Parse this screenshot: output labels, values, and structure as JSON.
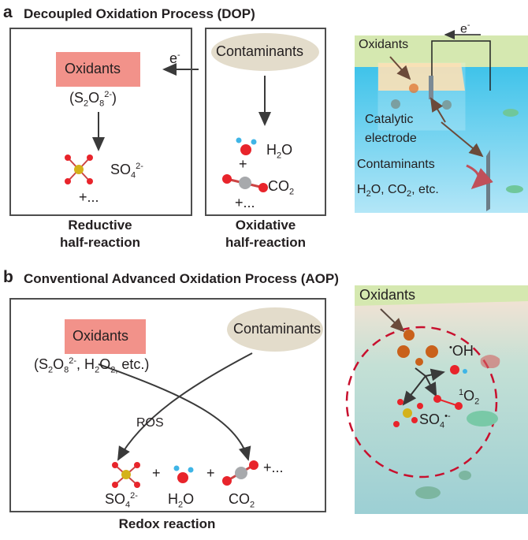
{
  "panel_a": {
    "letter": "a",
    "title": "Decoupled Oxidation Process (DOP)",
    "oxidants": "Oxidants",
    "oxidant_formula": {
      "pre": "(S",
      "s1": "2",
      "mid": "O",
      "s2": "8",
      "sup": "2-",
      "post": ")"
    },
    "sulfate": {
      "base": "SO",
      "sub": "4",
      "sup": "2-"
    },
    "plus_more_left": "+...",
    "reductive_label": [
      "Reductive",
      "half-reaction"
    ],
    "electron": {
      "base": "e",
      "sup": "-"
    },
    "contaminants": "Contaminants",
    "water": {
      "base1": "H",
      "sub": "2",
      "base2": "O"
    },
    "plus": "+",
    "co2": {
      "base": "CO",
      "sub": "2"
    },
    "plus_more_right": "+...",
    "oxidative_label": [
      "Oxidative",
      "half-reaction"
    ],
    "illustration": {
      "oxidants": "Oxidants",
      "electron": {
        "base": "e",
        "sup": "-"
      },
      "catalytic": "Catalytic",
      "electrode": "electrode",
      "contaminants": "Contaminants",
      "products": {
        "a": "H",
        "s1": "2",
        "b": "O, CO",
        "s2": "2",
        "c": ", etc."
      }
    }
  },
  "panel_b": {
    "letter": "b",
    "title": "Conventional Advanced Oxidation Process (AOP)",
    "oxidants": "Oxidants",
    "oxidant_formula": {
      "a": "(S",
      "s1": "2",
      "b": "O",
      "s2": "8",
      "sup": "2-",
      "c": ", H",
      "s3": "2",
      "d": "O",
      "s4": "2,",
      "e": " etc.)"
    },
    "contaminants": "Contaminants",
    "ros": "ROS",
    "plus": "+",
    "plus_more": "+...",
    "products": [
      {
        "base": "SO",
        "sub": "4",
        "sup": "2-"
      },
      {
        "base1": "H",
        "sub": "2",
        "base2": "O"
      },
      {
        "base": "CO",
        "sub": "2"
      }
    ],
    "footer": "Redox reaction",
    "illustration": {
      "oxidants": "Oxidants",
      "oh": {
        "dot": "•",
        "base": "OH"
      },
      "singlet_o2": {
        "sup": "1",
        "base": "O",
        "sub": "2"
      },
      "sulfate_radical": {
        "base": "SO",
        "sub": "4",
        "sup": "•-"
      }
    }
  },
  "colors": {
    "oxidant_box": "#f2928a",
    "contaminant_ellipse": "#e3dccb",
    "oxygen": "#e8242b",
    "sulfur": "#d4b21a",
    "carbon": "#a7a9ac",
    "hydrogen": "#3fb5e6",
    "water_blue": "#7fd0ec",
    "surface_green": "#d5e8b0",
    "dashed_circle": "#c8102e"
  }
}
